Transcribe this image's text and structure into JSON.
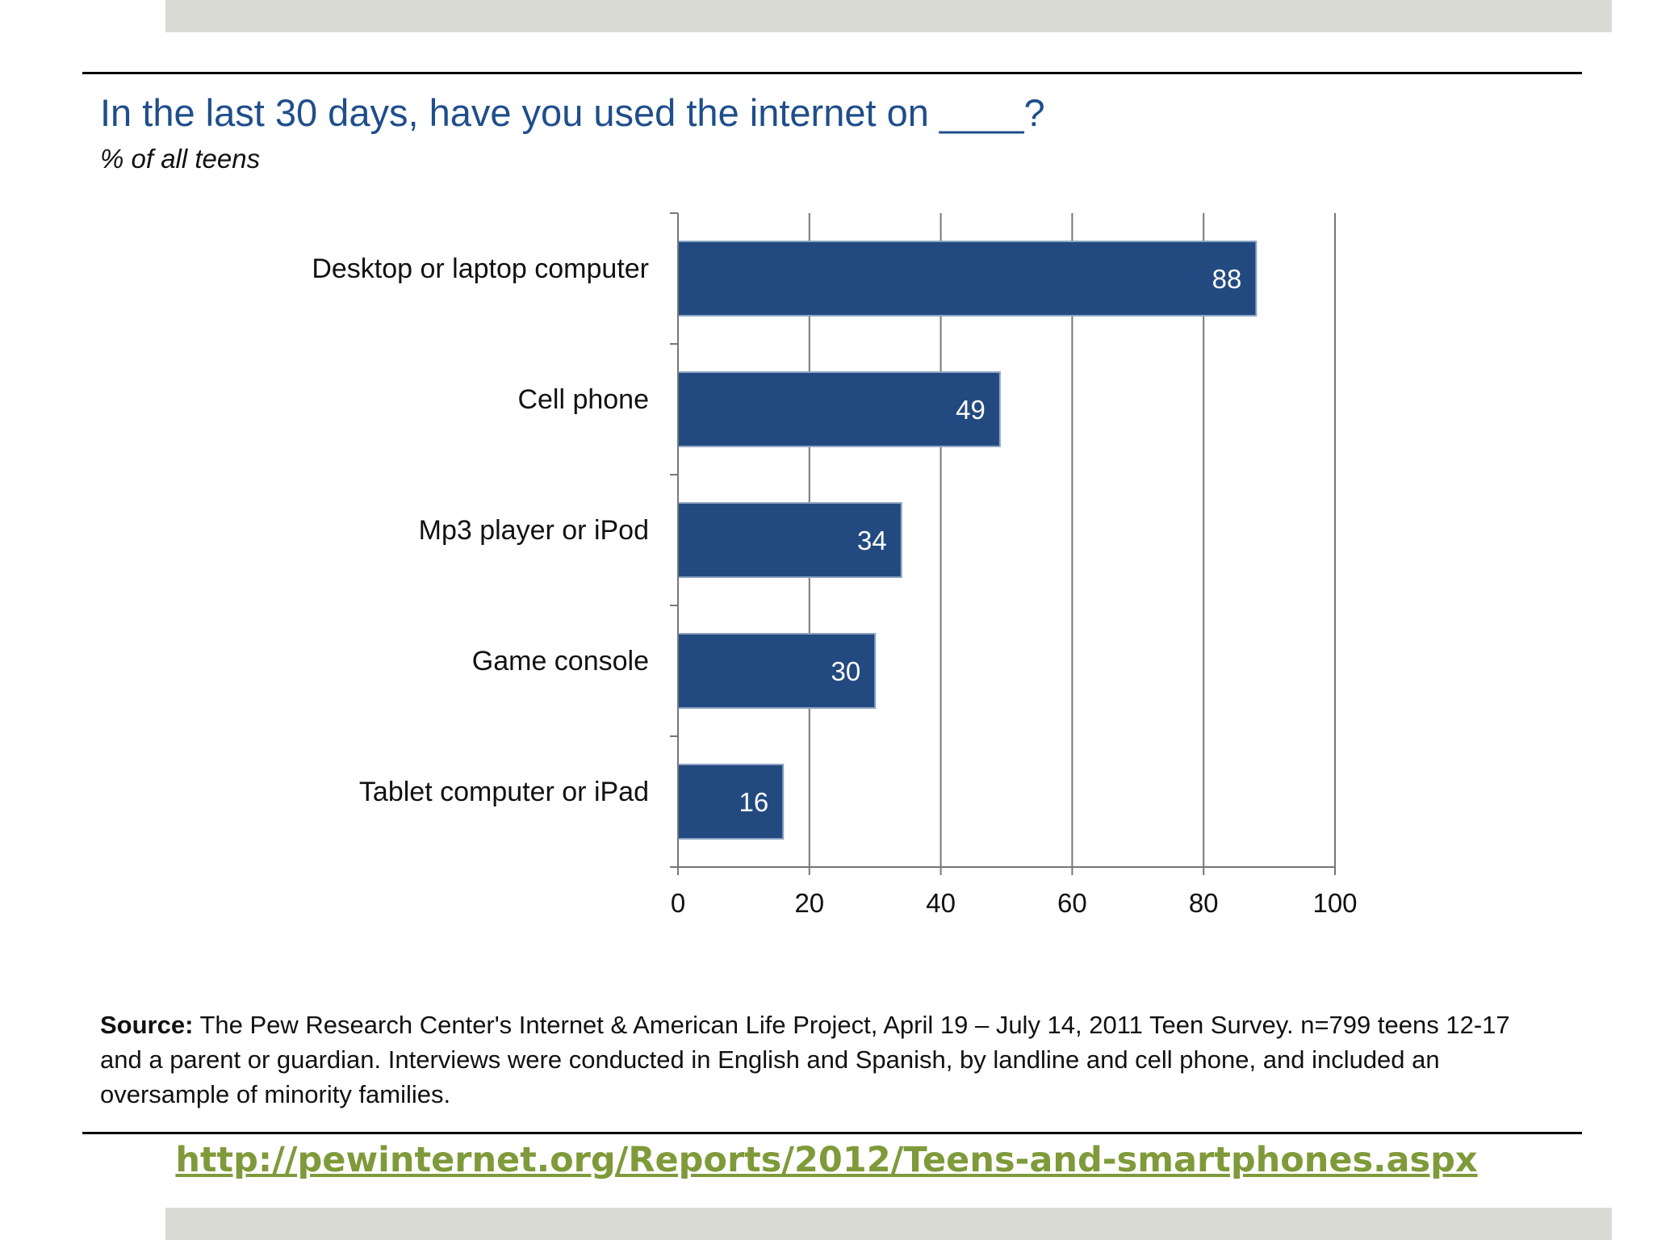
{
  "chart_data": {
    "type": "bar",
    "orientation": "horizontal",
    "title": "In the last 30 days, have you used the internet on ____?",
    "subtitle": "% of all teens",
    "categories": [
      "Desktop or laptop computer",
      "Cell phone",
      "Mp3 player or iPod",
      "Game console",
      "Tablet computer or iPad"
    ],
    "values": [
      88,
      49,
      34,
      30,
      16
    ],
    "data_labels": [
      "88",
      "49",
      "34",
      "30",
      "16"
    ],
    "xlim": [
      0,
      100
    ],
    "x_ticks": [
      0,
      20,
      40,
      60,
      80,
      100
    ],
    "x_tick_labels": [
      "0",
      "20",
      "40",
      "60",
      "80",
      "100"
    ],
    "grid": true,
    "bar_color": "#224a80",
    "label_color": "#ffffff"
  },
  "source": {
    "label": "Source:",
    "text": " The Pew Research Center's Internet & American Life Project, April 19 – July 14, 2011 Teen Survey. n=799 teens 12-17 and a parent or guardian. Interviews were conducted in English and Spanish, by landline and cell phone, and included an oversample of minority families."
  },
  "link": {
    "text": "http://pewinternet.org/Reports/2012/Teens-and-smartphones.aspx"
  },
  "colors": {
    "title": "#1f4e8a",
    "link": "#7f9a3a",
    "band": "#d9dad3"
  }
}
